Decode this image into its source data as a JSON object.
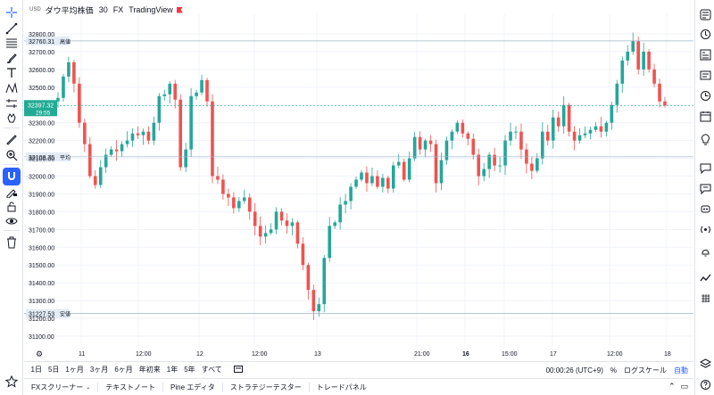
{
  "legend": {
    "currency": "USD",
    "title": "ダウ平均株価",
    "interval": "30",
    "source": "FX",
    "brand": "TradingView"
  },
  "price_axis": {
    "ticks": [
      "32800.00",
      "32700.00",
      "32600.00",
      "32500.00",
      "32300.00",
      "32200.00",
      "32100.00",
      "32000.00",
      "31900.00",
      "31800.00",
      "31700.00",
      "31600.00",
      "31500.00",
      "31400.00",
      "31300.00",
      "31200.00",
      "31100.00"
    ],
    "high_label": {
      "value": "32760.31",
      "tag": "高値"
    },
    "current_label": {
      "value": "32397.32",
      "countdown": "29:55"
    },
    "avg_label": {
      "value": "32108.75",
      "tag": "平均"
    },
    "low_label": {
      "value": "31227.53",
      "tag": "安値"
    },
    "colors": {
      "up": "#26a69a",
      "down": "#ef5350",
      "current": "#22ab94",
      "guide": "#9fb6c8"
    }
  },
  "time_axis": {
    "labels": [
      "11",
      "12:00",
      "12",
      "12:00",
      "13",
      "21:00",
      "16",
      "15:00",
      "17",
      "12:00",
      "18"
    ]
  },
  "chart_data": {
    "type": "candlestick",
    "ylim": [
      31060,
      32850
    ],
    "x_labels": [
      "11",
      "12:00",
      "12",
      "12:00",
      "13",
      "21:00",
      "16",
      "15:00",
      "17",
      "12:00",
      "18"
    ],
    "reference_lines": {
      "high": 32760.31,
      "current": 32397.32,
      "average": 32108.75,
      "low": 31227.53
    },
    "close_path": [
      32440,
      32560,
      32640,
      32520,
      32300,
      32180,
      32000,
      31950,
      32050,
      32120,
      32150,
      32140,
      32180,
      32200,
      32240,
      32230,
      32250,
      32200,
      32300,
      32450,
      32460,
      32520,
      32430,
      32050,
      32150,
      32450,
      32470,
      32540,
      32420,
      32000,
      31980,
      31900,
      31880,
      31820,
      31860,
      31880,
      31800,
      31720,
      31660,
      31680,
      31700,
      31800,
      31750,
      31720,
      31740,
      31620,
      31500,
      31360,
      31240,
      31280,
      31540,
      31720,
      31740,
      31840,
      31860,
      31940,
      31980,
      32020,
      31960,
      32000,
      31940,
      31990,
      31930,
      32060,
      32080,
      31980,
      32100,
      32220,
      32150,
      32200,
      32180,
      31960,
      32090,
      32200,
      32250,
      32300,
      32240,
      32210,
      32120,
      32000,
      32040,
      32120,
      32060,
      32060,
      32200,
      32250,
      32250,
      32150,
      32070,
      32030,
      32100,
      32250,
      32200,
      32330,
      32280,
      32400,
      32250,
      32200,
      32230,
      32240,
      32260,
      32280,
      32250,
      32300,
      32400,
      32520,
      32650,
      32700,
      32760,
      32600,
      32700,
      32600,
      32520,
      32420,
      32397
    ]
  },
  "range_buttons": [
    "1日",
    "5日",
    "1ヶ月",
    "3ヶ月",
    "6ヶ月",
    "年初来",
    "1年",
    "5年",
    "すべて"
  ],
  "status": {
    "clock": "00:00:26 (UTC+9)",
    "percent": "%",
    "log": "ログスケール",
    "auto": "自動"
  },
  "panel_tabs": [
    {
      "label": "FXスクリーナー",
      "has_menu": true
    },
    {
      "label": "テキストノート",
      "has_menu": false
    },
    {
      "label": "Pine エディタ",
      "has_menu": false
    },
    {
      "label": "ストラテジーテスター",
      "has_menu": false
    },
    {
      "label": "トレードパネル",
      "has_menu": false
    }
  ],
  "panel_controls": {
    "collapse": "⌃",
    "maximize": "▭"
  },
  "left_tools": [
    "crosshair-icon",
    "trend-line-icon",
    "fib-icon",
    "brush-icon",
    "text-icon",
    "pattern-icon",
    "measure-icon",
    "hand-icon",
    "ruler-icon",
    "zoom-icon",
    "magnet-icon",
    "lock-drawing-icon",
    "unlock-icon",
    "eye-icon",
    "trash-icon",
    "star-icon"
  ],
  "right_tools": [
    "watchlist-icon",
    "alerts-icon",
    "data-window-icon",
    "news-icon",
    "clock-icon",
    "calendar-icon",
    "idea-icon",
    "chat-icon",
    "streams-icon",
    "broadcast-icon",
    "bell-icon",
    "ideas-stream-icon",
    "hotlist-icon",
    "layers-icon",
    "help-icon"
  ]
}
